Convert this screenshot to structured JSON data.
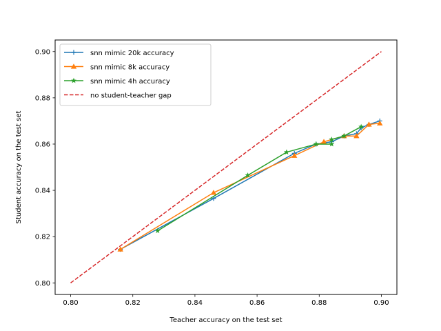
{
  "chart_data": {
    "type": "line",
    "title": "",
    "xlabel": "Teacher accuracy on the test set",
    "ylabel": "Student accuracy on the test set",
    "xlim": [
      0.795,
      0.905
    ],
    "ylim": [
      0.795,
      0.905
    ],
    "xticks": [
      0.8,
      0.82,
      0.84,
      0.86,
      0.88,
      0.9
    ],
    "yticks": [
      0.8,
      0.82,
      0.84,
      0.86,
      0.88,
      0.9
    ],
    "xtick_labels": [
      "0.80",
      "0.82",
      "0.84",
      "0.86",
      "0.88",
      "0.90"
    ],
    "ytick_labels": [
      "0.80",
      "0.82",
      "0.84",
      "0.86",
      "0.88",
      "0.90"
    ],
    "grid": false,
    "legend_position": "top-left",
    "series": [
      {
        "name": "snn mimic 20k accuracy",
        "color": "#1f77b4",
        "marker": "plus",
        "line": "solid",
        "x": [
          0.816,
          0.846,
          0.872,
          0.879,
          0.884,
          0.888,
          0.892,
          0.8935,
          0.896,
          0.8995
        ],
        "y": [
          0.8145,
          0.8365,
          0.856,
          0.86,
          0.861,
          0.8635,
          0.8645,
          0.867,
          0.8685,
          0.87
        ]
      },
      {
        "name": "snn mimic 8k accuracy",
        "color": "#ff7f0e",
        "marker": "triangle",
        "line": "solid",
        "x": [
          0.816,
          0.846,
          0.872,
          0.8815,
          0.888,
          0.892,
          0.896,
          0.8995
        ],
        "y": [
          0.8145,
          0.839,
          0.855,
          0.861,
          0.8635,
          0.8635,
          0.8685,
          0.869
        ]
      },
      {
        "name": "snn mimic 4h accuracy",
        "color": "#2ca02c",
        "marker": "star",
        "line": "solid",
        "x": [
          0.828,
          0.857,
          0.8695,
          0.879,
          0.884,
          0.884,
          0.888,
          0.8935
        ],
        "y": [
          0.8225,
          0.8465,
          0.8565,
          0.86,
          0.86,
          0.862,
          0.8635,
          0.8675
        ]
      },
      {
        "name": "no student-teacher gap",
        "color": "#d62728",
        "marker": "none",
        "line": "dashed",
        "x": [
          0.8,
          0.9
        ],
        "y": [
          0.8,
          0.9
        ]
      }
    ]
  }
}
